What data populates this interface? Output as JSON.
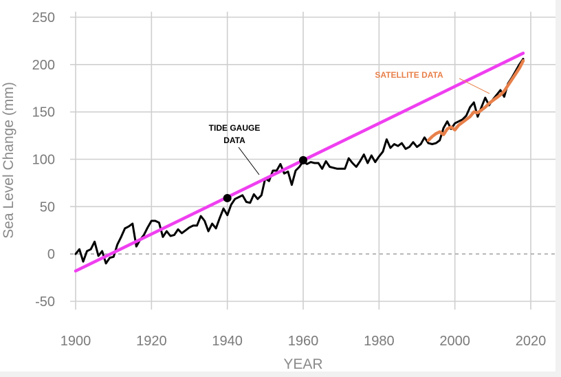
{
  "chart_data": {
    "type": "line",
    "xlabel": "YEAR",
    "ylabel": "Sea Level Change (mm)",
    "xlim": [
      1900,
      2020
    ],
    "ylim": [
      -50,
      250
    ],
    "x_ticks": [
      1900,
      1920,
      1940,
      1960,
      1980,
      2000,
      2020
    ],
    "y_ticks": [
      250,
      200,
      150,
      100,
      50,
      0,
      -50
    ],
    "grid": true,
    "zero_line_dashed": true,
    "colors": {
      "tide_gauge": "#000000",
      "satellite": "#e8804a",
      "trend": "#ef3ff0",
      "grid": "#cfcfcf",
      "zero_line": "#a8a8a8"
    },
    "annotations": {
      "tide_gauge_line1": "TIDE GAUGE",
      "tide_gauge_line2": "DATA",
      "satellite": "SATELLITE DATA"
    },
    "series": [
      {
        "key": "tide_gauge",
        "x": [
          1900,
          1901,
          1902,
          1903,
          1904,
          1905,
          1906,
          1907,
          1908,
          1909,
          1910,
          1911,
          1912,
          1913,
          1914,
          1915,
          1916,
          1917,
          1918,
          1919,
          1920,
          1921,
          1922,
          1923,
          1924,
          1925,
          1926,
          1927,
          1928,
          1929,
          1930,
          1931,
          1932,
          1933,
          1934,
          1935,
          1936,
          1937,
          1938,
          1939,
          1940,
          1941,
          1942,
          1943,
          1944,
          1945,
          1946,
          1947,
          1948,
          1949,
          1950,
          1951,
          1952,
          1953,
          1954,
          1955,
          1956,
          1957,
          1958,
          1959,
          1960,
          1961,
          1962,
          1963,
          1964,
          1965,
          1966,
          1967,
          1968,
          1969,
          1970,
          1971,
          1972,
          1973,
          1974,
          1975,
          1976,
          1977,
          1978,
          1979,
          1980,
          1981,
          1982,
          1983,
          1984,
          1985,
          1986,
          1987,
          1988,
          1989,
          1990,
          1991,
          1992,
          1993,
          1994,
          1995,
          1996,
          1997,
          1998,
          1999,
          2000,
          2001,
          2002,
          2003,
          2004,
          2005,
          2006,
          2007,
          2008,
          2009,
          2010,
          2011,
          2012,
          2013,
          2014,
          2015,
          2016,
          2017,
          2018
        ],
        "y": [
          0,
          5,
          -8,
          3,
          5,
          13,
          -2,
          3,
          -10,
          -4,
          -3,
          10,
          18,
          27,
          29,
          32,
          8,
          15,
          20,
          28,
          35,
          35,
          33,
          18,
          24,
          19,
          20,
          26,
          22,
          25,
          28,
          30,
          30,
          40,
          35,
          24,
          32,
          27,
          38,
          48,
          41,
          52,
          58,
          60,
          62,
          55,
          54,
          63,
          58,
          62,
          80,
          77,
          88,
          88,
          95,
          85,
          87,
          73,
          88,
          92,
          98,
          95,
          97,
          96,
          96,
          90,
          98,
          92,
          91,
          90,
          90,
          90,
          101,
          96,
          92,
          98,
          105,
          96,
          104,
          97,
          103,
          108,
          121,
          112,
          116,
          114,
          117,
          111,
          113,
          118,
          113,
          116,
          123,
          117,
          116,
          117,
          120,
          133,
          140,
          132,
          138,
          140,
          142,
          146,
          155,
          160,
          145,
          155,
          165,
          157,
          163,
          168,
          173,
          166,
          180,
          186,
          193,
          200,
          206
        ]
      },
      {
        "key": "satellite",
        "x": [
          1993,
          1994,
          1995,
          1996,
          1997,
          1998,
          1999,
          2000,
          2001,
          2002,
          2003,
          2004,
          2005,
          2006,
          2007,
          2008,
          2009,
          2010,
          2011,
          2012,
          2013,
          2014,
          2015,
          2016,
          2017,
          2018
        ],
        "y": [
          120,
          124,
          127,
          129,
          126,
          132,
          134,
          131,
          136,
          139,
          142,
          145,
          150,
          149,
          152,
          155,
          159,
          162,
          165,
          168,
          172,
          178,
          184,
          190,
          196,
          204
        ]
      },
      {
        "key": "trend",
        "x": [
          1900,
          2018
        ],
        "y": [
          -18,
          212
        ]
      }
    ],
    "points": [
      {
        "x": 1940,
        "y": 59
      },
      {
        "x": 1960,
        "y": 99
      }
    ]
  }
}
